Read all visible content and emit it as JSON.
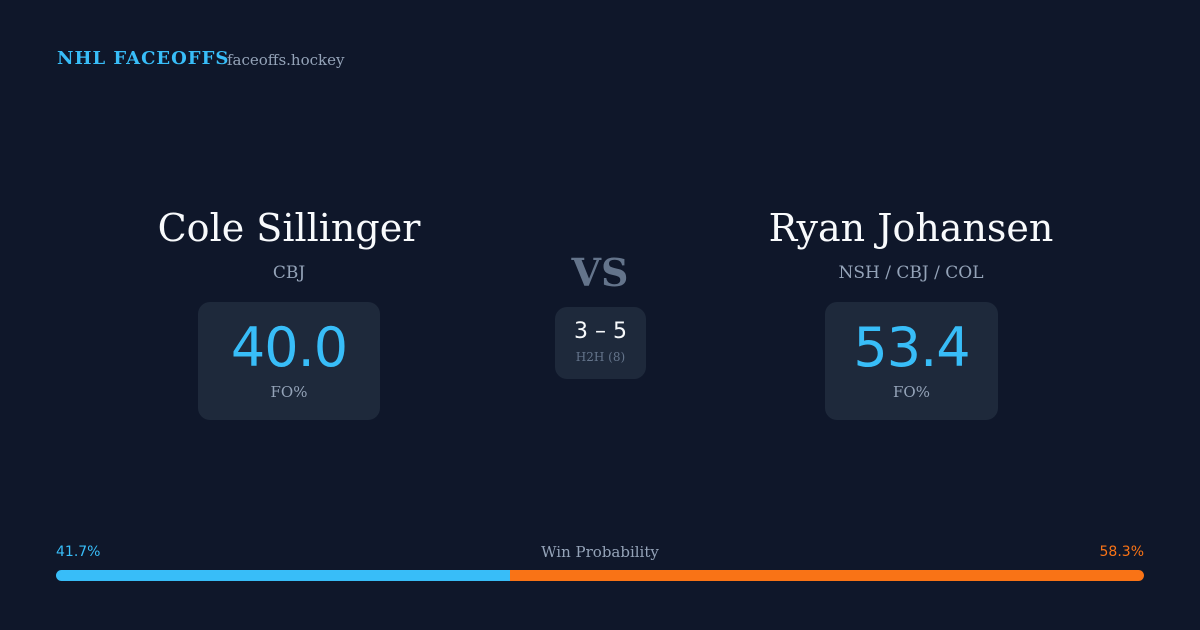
{
  "header": {
    "brand": "NHL FACEOFFS",
    "site": "faceoffs.hockey"
  },
  "players": [
    {
      "name": "Cole Sillinger",
      "team": "CBJ",
      "stat": "40.0",
      "stat_label": "FO%"
    },
    {
      "name": "Ryan Johansen",
      "team": "NSH / CBJ / COL",
      "stat": "53.4",
      "stat_label": "FO%"
    }
  ],
  "versus": {
    "label": "VS",
    "score": "3 – 5",
    "score_label": "H2H (8)"
  },
  "win_probability": {
    "title": "Win Probability",
    "left": {
      "value": 41.7,
      "label": "41.7%",
      "color": "#38bdf8"
    },
    "right": {
      "value": 58.3,
      "label": "58.3%",
      "color": "#f97316"
    }
  }
}
